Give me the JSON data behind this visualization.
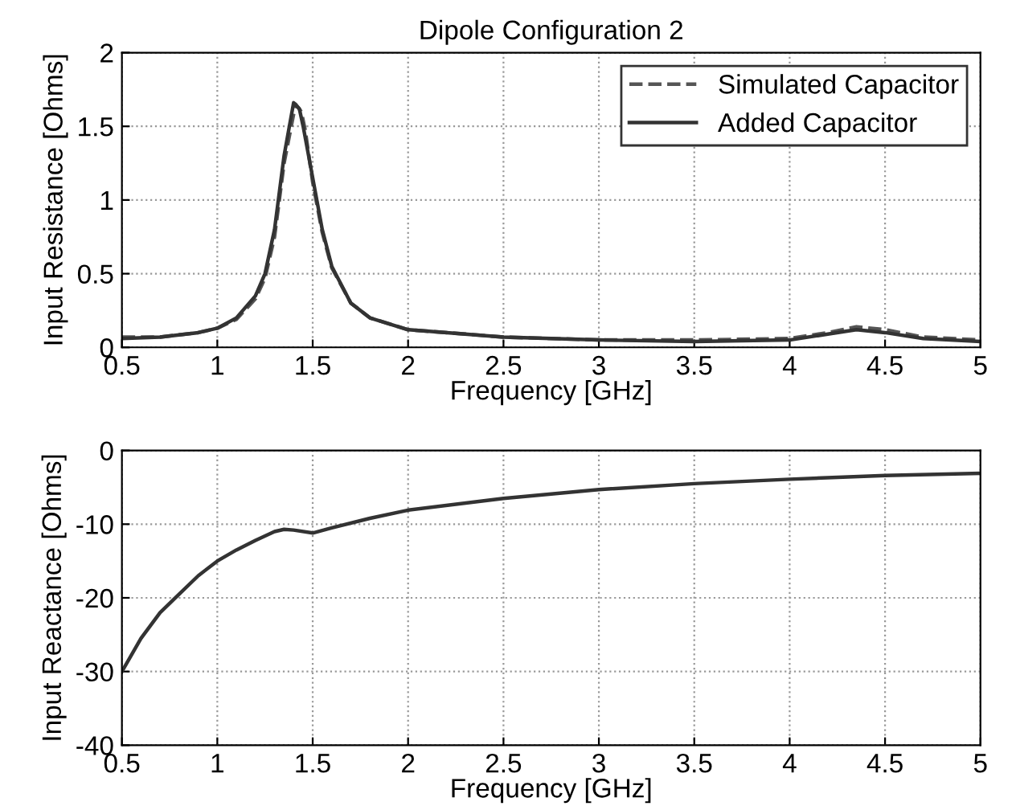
{
  "chart_data": [
    {
      "type": "line",
      "title": "Dipole Configuration 2",
      "xlabel": "Frequency [GHz]",
      "ylabel": "Input Resistance [Ohms]",
      "xlim": [
        0.5,
        5
      ],
      "ylim": [
        0,
        2
      ],
      "xticks": [
        0.5,
        1,
        1.5,
        2,
        2.5,
        3,
        3.5,
        4,
        4.5,
        5
      ],
      "yticks": [
        0,
        0.5,
        1,
        1.5,
        2
      ],
      "grid": true,
      "legend": "top right",
      "series": [
        {
          "name": "Simulated Capacitor",
          "color": "#555555",
          "line_style": "dashed",
          "x": [
            0.5,
            0.7,
            0.9,
            1.0,
            1.1,
            1.2,
            1.25,
            1.3,
            1.35,
            1.41,
            1.44,
            1.46,
            1.5,
            1.55,
            1.6,
            1.7,
            1.8,
            2.0,
            2.5,
            3.0,
            3.5,
            4.0,
            4.2,
            4.35,
            4.5,
            4.7,
            5.0
          ],
          "values": [
            0.07,
            0.07,
            0.1,
            0.13,
            0.19,
            0.33,
            0.47,
            0.75,
            1.25,
            1.65,
            1.6,
            1.48,
            1.12,
            0.78,
            0.54,
            0.3,
            0.2,
            0.12,
            0.07,
            0.05,
            0.05,
            0.06,
            0.1,
            0.14,
            0.12,
            0.07,
            0.05
          ]
        },
        {
          "name": "Added Capacitor",
          "color": "#333333",
          "line_style": "solid",
          "x": [
            0.5,
            0.7,
            0.9,
            1.0,
            1.1,
            1.2,
            1.25,
            1.3,
            1.35,
            1.4,
            1.43,
            1.45,
            1.5,
            1.55,
            1.6,
            1.7,
            1.8,
            2.0,
            2.5,
            3.0,
            3.5,
            4.0,
            4.2,
            4.35,
            4.5,
            4.7,
            5.0
          ],
          "values": [
            0.06,
            0.07,
            0.1,
            0.13,
            0.2,
            0.35,
            0.5,
            0.8,
            1.3,
            1.66,
            1.62,
            1.5,
            1.15,
            0.8,
            0.55,
            0.3,
            0.2,
            0.12,
            0.07,
            0.05,
            0.04,
            0.05,
            0.09,
            0.12,
            0.1,
            0.06,
            0.04
          ]
        }
      ]
    },
    {
      "type": "line",
      "xlabel": "Frequency [GHz]",
      "ylabel": "Input Reactance [Ohms]",
      "xlim": [
        0.5,
        5
      ],
      "ylim": [
        -40,
        0
      ],
      "xticks": [
        0.5,
        1,
        1.5,
        2,
        2.5,
        3,
        3.5,
        4,
        4.5,
        5
      ],
      "yticks": [
        -40,
        -30,
        -20,
        -10,
        0
      ],
      "grid": true,
      "series": [
        {
          "color": "#333333",
          "line_style": "solid",
          "x": [
            0.5,
            0.6,
            0.7,
            0.8,
            0.9,
            1.0,
            1.1,
            1.2,
            1.3,
            1.35,
            1.4,
            1.5,
            1.6,
            1.8,
            2.0,
            2.5,
            3.0,
            3.5,
            4.0,
            4.5,
            5.0
          ],
          "values": [
            -30,
            -25.5,
            -22,
            -19.5,
            -17,
            -15,
            -13.5,
            -12.2,
            -11,
            -10.7,
            -10.8,
            -11.2,
            -10.5,
            -9.2,
            -8.1,
            -6.5,
            -5.3,
            -4.5,
            -3.9,
            -3.4,
            -3.1
          ]
        }
      ]
    }
  ]
}
